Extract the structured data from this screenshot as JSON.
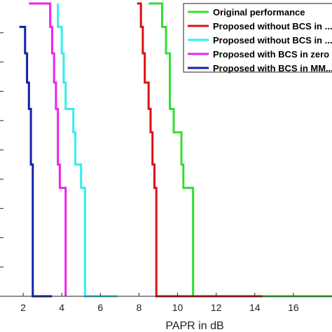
{
  "chart_data": {
    "type": "line",
    "title": "",
    "xlabel": "PAPR in dB",
    "ylabel": "",
    "xlim": [
      0.8,
      18.0
    ],
    "ylim": [
      0,
      1
    ],
    "grid": false,
    "legend_position": "top-right",
    "xticks": [
      2,
      4,
      6,
      8,
      10,
      12,
      14,
      16
    ],
    "x_tick_labels": [
      "2",
      "4",
      "6",
      "8",
      "10",
      "12",
      "14",
      "16"
    ],
    "series": [
      {
        "name": "Original performance",
        "color": "#33dd33",
        "points": [
          [
            8.5,
            1.0
          ],
          [
            9.2,
            1.0
          ],
          [
            9.2,
            0.92
          ],
          [
            9.4,
            0.92
          ],
          [
            9.4,
            0.83
          ],
          [
            9.6,
            0.83
          ],
          [
            9.6,
            0.73
          ],
          [
            9.6,
            0.64
          ],
          [
            9.8,
            0.64
          ],
          [
            9.8,
            0.56
          ],
          [
            10.2,
            0.56
          ],
          [
            10.2,
            0.45
          ],
          [
            10.3,
            0.45
          ],
          [
            10.3,
            0.37
          ],
          [
            10.8,
            0.37
          ],
          [
            10.8,
            0.0
          ],
          [
            18.0,
            0.0
          ]
        ]
      },
      {
        "name": "Proposed without BCS in ...",
        "color": "#dd1111",
        "points": [
          [
            7.9,
            1.0
          ],
          [
            8.1,
            1.0
          ],
          [
            8.1,
            0.92
          ],
          [
            8.2,
            0.92
          ],
          [
            8.2,
            0.83
          ],
          [
            8.3,
            0.83
          ],
          [
            8.3,
            0.73
          ],
          [
            8.5,
            0.73
          ],
          [
            8.5,
            0.64
          ],
          [
            8.6,
            0.64
          ],
          [
            8.6,
            0.56
          ],
          [
            8.7,
            0.56
          ],
          [
            8.7,
            0.45
          ],
          [
            8.8,
            0.45
          ],
          [
            8.8,
            0.37
          ],
          [
            8.9,
            0.37
          ],
          [
            8.9,
            0.0
          ],
          [
            14.4,
            0.0
          ]
        ]
      },
      {
        "name": "Proposed without BCS in ...",
        "color": "#33eeee",
        "points": [
          [
            3.8,
            1.0
          ],
          [
            3.8,
            0.92
          ],
          [
            4.0,
            0.92
          ],
          [
            4.0,
            0.83
          ],
          [
            4.1,
            0.83
          ],
          [
            4.1,
            0.73
          ],
          [
            4.2,
            0.73
          ],
          [
            4.2,
            0.64
          ],
          [
            4.6,
            0.64
          ],
          [
            4.6,
            0.56
          ],
          [
            4.7,
            0.56
          ],
          [
            4.7,
            0.45
          ],
          [
            5.0,
            0.45
          ],
          [
            5.0,
            0.37
          ],
          [
            5.2,
            0.37
          ],
          [
            5.2,
            0.0
          ],
          [
            6.9,
            0.0
          ]
        ]
      },
      {
        "name": "Proposed with BCS in zero ...",
        "color": "#ee22ee",
        "points": [
          [
            2.3,
            1.0
          ],
          [
            3.4,
            1.0
          ],
          [
            3.4,
            0.92
          ],
          [
            3.5,
            0.92
          ],
          [
            3.5,
            0.83
          ],
          [
            3.6,
            0.83
          ],
          [
            3.6,
            0.73
          ],
          [
            3.7,
            0.73
          ],
          [
            3.7,
            0.64
          ],
          [
            3.8,
            0.64
          ],
          [
            3.8,
            0.56
          ],
          [
            3.8,
            0.45
          ],
          [
            3.9,
            0.45
          ],
          [
            3.9,
            0.37
          ],
          [
            4.2,
            0.37
          ],
          [
            4.2,
            0.0
          ]
        ]
      },
      {
        "name": "Proposed with BCS in MM...",
        "color": "#1122aa",
        "points": [
          [
            1.8,
            0.92
          ],
          [
            2.1,
            0.92
          ],
          [
            2.1,
            0.83
          ],
          [
            2.2,
            0.83
          ],
          [
            2.2,
            0.73
          ],
          [
            2.3,
            0.73
          ],
          [
            2.3,
            0.64
          ],
          [
            2.4,
            0.64
          ],
          [
            2.4,
            0.56
          ],
          [
            2.4,
            0.45
          ],
          [
            2.5,
            0.45
          ],
          [
            2.5,
            0.37
          ],
          [
            2.5,
            0.0
          ],
          [
            3.5,
            0.0
          ]
        ]
      }
    ]
  }
}
